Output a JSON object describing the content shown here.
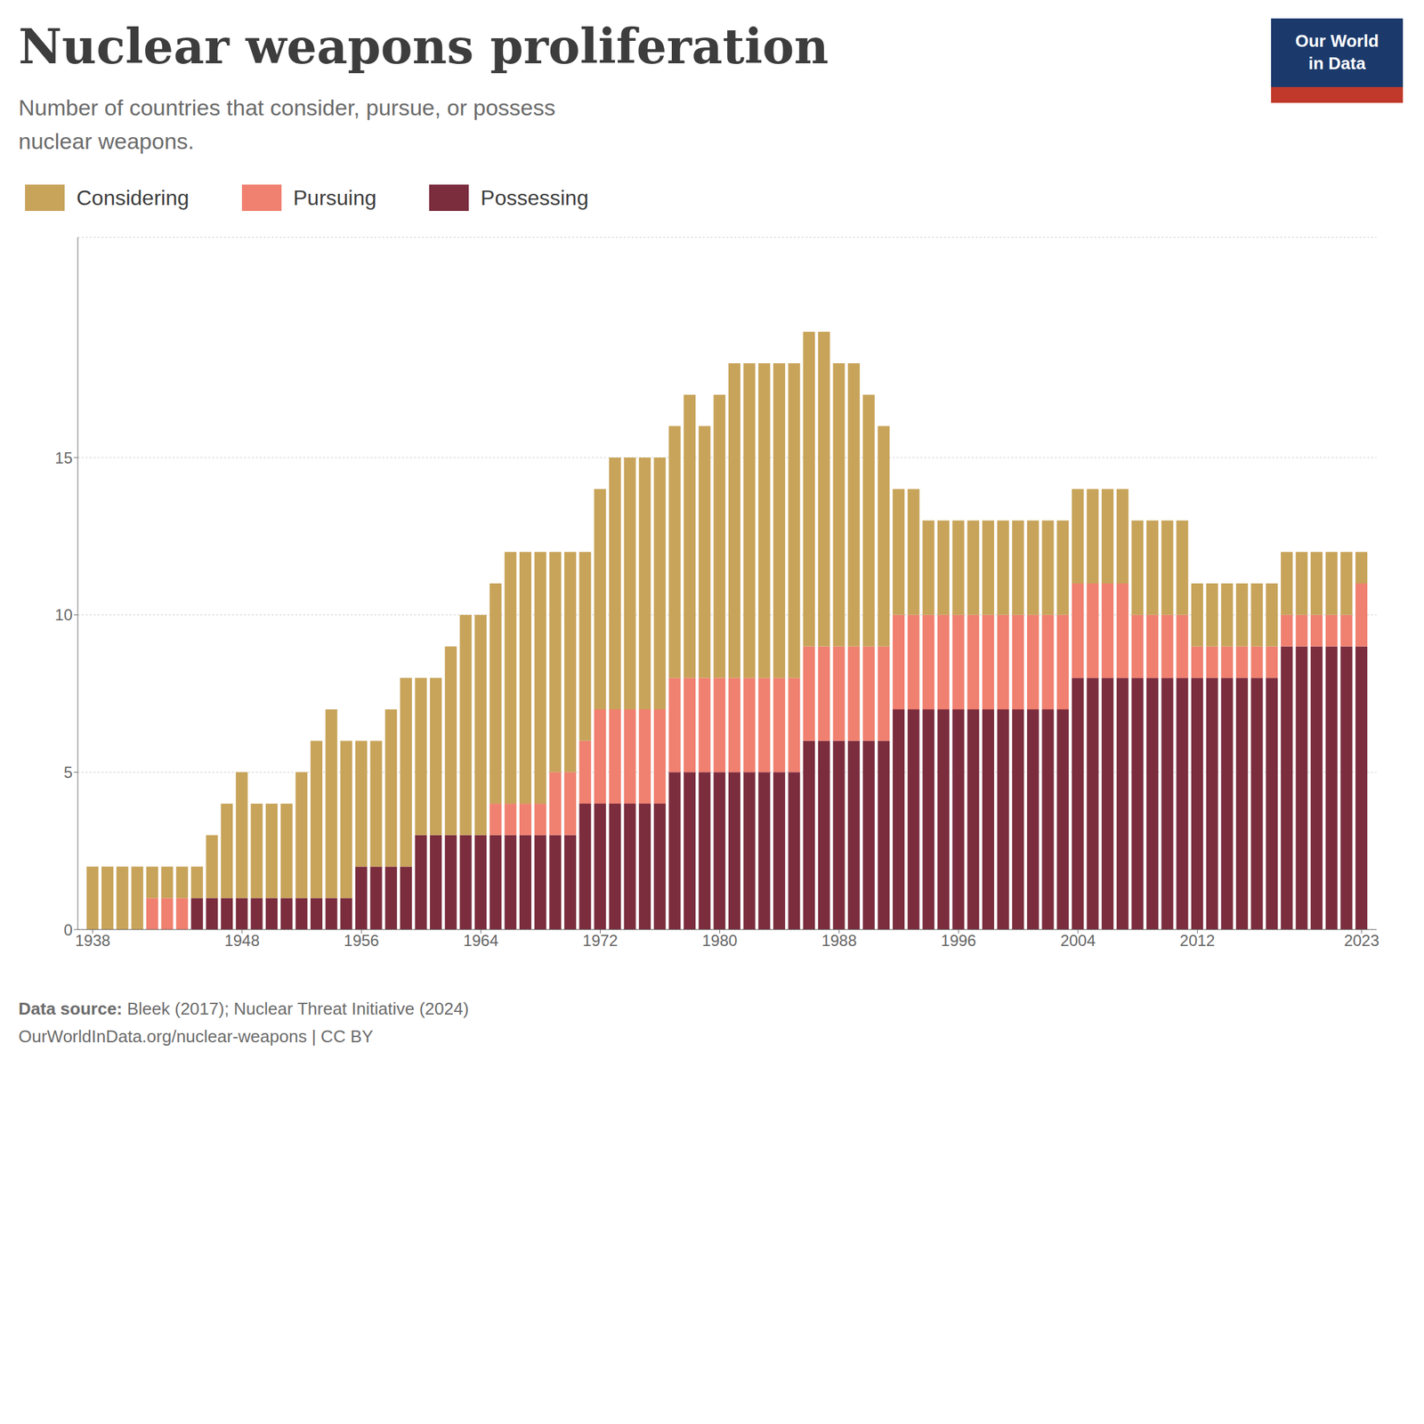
{
  "chart_data": {
    "type": "bar",
    "stacked": true,
    "title": "Nuclear weapons proliferation",
    "subtitle": "Number of countries that consider, pursue, or possess\nnuclear weapons.",
    "annotations": [
      "Data source: Bleek (2017); Nuclear Threat Initiative (2024)",
      "OurWorldInData.org/nuclear-weapons | CC BY"
    ],
    "logo": [
      "Our World",
      "in Data"
    ],
    "x": [
      1938,
      1939,
      1940,
      1941,
      1942,
      1943,
      1944,
      1945,
      1946,
      1947,
      1948,
      1949,
      1950,
      1951,
      1952,
      1953,
      1954,
      1955,
      1956,
      1957,
      1958,
      1959,
      1960,
      1961,
      1962,
      1963,
      1964,
      1965,
      1966,
      1967,
      1968,
      1969,
      1970,
      1971,
      1972,
      1973,
      1974,
      1975,
      1976,
      1977,
      1978,
      1979,
      1980,
      1981,
      1982,
      1983,
      1984,
      1985,
      1986,
      1987,
      1988,
      1989,
      1990,
      1991,
      1992,
      1993,
      1994,
      1995,
      1996,
      1997,
      1998,
      1999,
      2000,
      2001,
      2002,
      2003,
      2004,
      2005,
      2006,
      2007,
      2008,
      2009,
      2010,
      2011,
      2012,
      2013,
      2014,
      2015,
      2016,
      2017,
      2018,
      2019,
      2020,
      2021,
      2022,
      2023
    ],
    "series": [
      {
        "name": "Possessing",
        "color": "#7B2D3E",
        "values": [
          0,
          0,
          0,
          0,
          0,
          0,
          0,
          1,
          1,
          1,
          1,
          1,
          1,
          1,
          1,
          1,
          1,
          1,
          2,
          2,
          2,
          2,
          3,
          3,
          3,
          3,
          3,
          3,
          3,
          3,
          3,
          3,
          3,
          4,
          4,
          4,
          4,
          4,
          4,
          5,
          5,
          5,
          5,
          5,
          5,
          5,
          5,
          5,
          6,
          6,
          6,
          6,
          6,
          6,
          7,
          7,
          7,
          7,
          7,
          7,
          7,
          7,
          7,
          7,
          7,
          7,
          8,
          8,
          8,
          8,
          8,
          8,
          8,
          8,
          8,
          8,
          8,
          8,
          8,
          8,
          9,
          9,
          9,
          9,
          9,
          9
        ]
      },
      {
        "name": "Pursuing",
        "color": "#F08070",
        "values": [
          0,
          0,
          0,
          0,
          1,
          1,
          1,
          0,
          0,
          0,
          0,
          0,
          0,
          0,
          0,
          0,
          0,
          0,
          0,
          0,
          0,
          0,
          0,
          0,
          0,
          0,
          0,
          1,
          1,
          1,
          1,
          2,
          2,
          2,
          3,
          3,
          3,
          3,
          3,
          3,
          3,
          3,
          3,
          3,
          3,
          3,
          3,
          3,
          3,
          3,
          3,
          3,
          3,
          3,
          3,
          3,
          3,
          3,
          3,
          3,
          3,
          3,
          3,
          3,
          3,
          3,
          3,
          3,
          3,
          3,
          2,
          2,
          2,
          2,
          1,
          1,
          1,
          1,
          1,
          1,
          1,
          1,
          1,
          1,
          1,
          2
        ]
      },
      {
        "name": "Considering",
        "color": "#C8A45A",
        "values": [
          2,
          2,
          2,
          2,
          1,
          1,
          1,
          1,
          2,
          3,
          4,
          3,
          3,
          3,
          4,
          5,
          6,
          5,
          4,
          4,
          5,
          6,
          5,
          5,
          6,
          7,
          7,
          7,
          8,
          8,
          8,
          7,
          7,
          6,
          7,
          8,
          8,
          8,
          8,
          8,
          9,
          8,
          9,
          10,
          10,
          10,
          10,
          10,
          10,
          10,
          9,
          9,
          8,
          7,
          4,
          4,
          3,
          3,
          3,
          3,
          3,
          3,
          3,
          3,
          3,
          3,
          3,
          3,
          3,
          3,
          3,
          3,
          3,
          3,
          2,
          2,
          2,
          2,
          2,
          2,
          2,
          2,
          2,
          2,
          2,
          1
        ]
      }
    ],
    "xlim": [
      1937,
      2024
    ],
    "xticks": [
      1938,
      1948,
      1956,
      1964,
      1972,
      1980,
      1988,
      1996,
      2004,
      2012,
      2023
    ],
    "ylim": [
      0,
      22
    ],
    "yticks": [
      0,
      5,
      10,
      15
    ],
    "grid": true,
    "legend": "top"
  }
}
